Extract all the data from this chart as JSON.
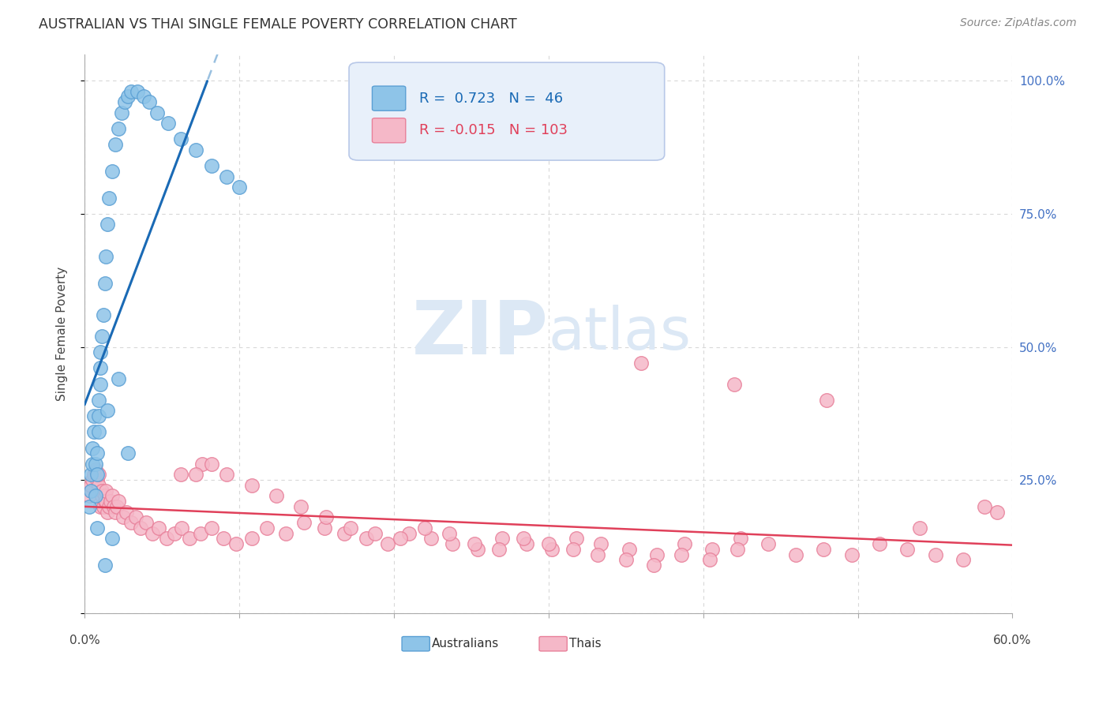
{
  "title": "AUSTRALIAN VS THAI SINGLE FEMALE POVERTY CORRELATION CHART",
  "source": "Source: ZipAtlas.com",
  "ylabel": "Single Female Poverty",
  "xlim": [
    0.0,
    0.6
  ],
  "ylim": [
    0.0,
    1.05
  ],
  "ytick_values": [
    0.0,
    0.25,
    0.5,
    0.75,
    1.0
  ],
  "ytick_labels_right": [
    "",
    "25.0%",
    "50.0%",
    "75.0%",
    "100.0%"
  ],
  "xtick_values": [
    0.0,
    0.1,
    0.2,
    0.3,
    0.4,
    0.5,
    0.6
  ],
  "xlabel_show": [
    "0.0%",
    "60.0%"
  ],
  "aus_color": "#8ec4e8",
  "aus_edge": "#5a9fd4",
  "thai_color": "#f5b8c8",
  "thai_edge": "#e8809a",
  "aus_line_color": "#1a6ab5",
  "aus_line_dash_color": "#99c0e0",
  "thai_line_color": "#e0405a",
  "watermark_color": "#dce8f5",
  "right_tick_color": "#4472c4",
  "bg_color": "#ffffff",
  "grid_color": "#d8d8d8",
  "title_color": "#333333",
  "source_color": "#888888",
  "legend_box_color": "#e8f0fa",
  "legend_box_edge": "#b8c8e8",
  "legend_aus_text_color": "#1a6ab5",
  "legend_thai_text_color": "#e0405a",
  "aus_x": [
    0.003,
    0.004,
    0.004,
    0.005,
    0.005,
    0.006,
    0.006,
    0.007,
    0.007,
    0.008,
    0.008,
    0.009,
    0.009,
    0.009,
    0.01,
    0.01,
    0.01,
    0.011,
    0.012,
    0.013,
    0.014,
    0.015,
    0.016,
    0.018,
    0.02,
    0.022,
    0.024,
    0.026,
    0.028,
    0.03,
    0.034,
    0.038,
    0.042,
    0.047,
    0.054,
    0.062,
    0.072,
    0.082,
    0.092,
    0.1,
    0.015,
    0.022,
    0.028,
    0.008,
    0.013,
    0.018
  ],
  "aus_y": [
    0.2,
    0.23,
    0.26,
    0.28,
    0.31,
    0.34,
    0.37,
    0.22,
    0.28,
    0.26,
    0.3,
    0.34,
    0.37,
    0.4,
    0.43,
    0.46,
    0.49,
    0.52,
    0.56,
    0.62,
    0.67,
    0.73,
    0.78,
    0.83,
    0.88,
    0.91,
    0.94,
    0.96,
    0.97,
    0.98,
    0.98,
    0.97,
    0.96,
    0.94,
    0.92,
    0.89,
    0.87,
    0.84,
    0.82,
    0.8,
    0.38,
    0.44,
    0.3,
    0.16,
    0.09,
    0.14
  ],
  "thai_x": [
    0.003,
    0.004,
    0.005,
    0.006,
    0.007,
    0.008,
    0.009,
    0.009,
    0.01,
    0.011,
    0.011,
    0.012,
    0.013,
    0.013,
    0.014,
    0.014,
    0.015,
    0.016,
    0.017,
    0.018,
    0.019,
    0.02,
    0.021,
    0.022,
    0.025,
    0.027,
    0.03,
    0.033,
    0.036,
    0.04,
    0.044,
    0.048,
    0.053,
    0.058,
    0.063,
    0.068,
    0.075,
    0.082,
    0.09,
    0.098,
    0.108,
    0.118,
    0.13,
    0.142,
    0.155,
    0.168,
    0.182,
    0.196,
    0.21,
    0.224,
    0.238,
    0.254,
    0.27,
    0.286,
    0.302,
    0.318,
    0.334,
    0.352,
    0.37,
    0.388,
    0.406,
    0.424,
    0.442,
    0.46,
    0.478,
    0.496,
    0.514,
    0.532,
    0.55,
    0.568,
    0.582,
    0.59,
    0.076,
    0.092,
    0.108,
    0.124,
    0.14,
    0.156,
    0.172,
    0.188,
    0.204,
    0.22,
    0.236,
    0.252,
    0.268,
    0.284,
    0.3,
    0.316,
    0.332,
    0.35,
    0.368,
    0.386,
    0.404,
    0.422,
    0.062,
    0.072,
    0.082,
    0.36,
    0.42,
    0.48,
    0.54
  ],
  "thai_y": [
    0.22,
    0.24,
    0.25,
    0.26,
    0.27,
    0.25,
    0.24,
    0.26,
    0.2,
    0.22,
    0.23,
    0.2,
    0.21,
    0.22,
    0.21,
    0.23,
    0.19,
    0.2,
    0.21,
    0.22,
    0.2,
    0.19,
    0.2,
    0.21,
    0.18,
    0.19,
    0.17,
    0.18,
    0.16,
    0.17,
    0.15,
    0.16,
    0.14,
    0.15,
    0.16,
    0.14,
    0.15,
    0.16,
    0.14,
    0.13,
    0.14,
    0.16,
    0.15,
    0.17,
    0.16,
    0.15,
    0.14,
    0.13,
    0.15,
    0.14,
    0.13,
    0.12,
    0.14,
    0.13,
    0.12,
    0.14,
    0.13,
    0.12,
    0.11,
    0.13,
    0.12,
    0.14,
    0.13,
    0.11,
    0.12,
    0.11,
    0.13,
    0.12,
    0.11,
    0.1,
    0.2,
    0.19,
    0.28,
    0.26,
    0.24,
    0.22,
    0.2,
    0.18,
    0.16,
    0.15,
    0.14,
    0.16,
    0.15,
    0.13,
    0.12,
    0.14,
    0.13,
    0.12,
    0.11,
    0.1,
    0.09,
    0.11,
    0.1,
    0.12,
    0.26,
    0.26,
    0.28,
    0.47,
    0.43,
    0.4,
    0.16
  ]
}
